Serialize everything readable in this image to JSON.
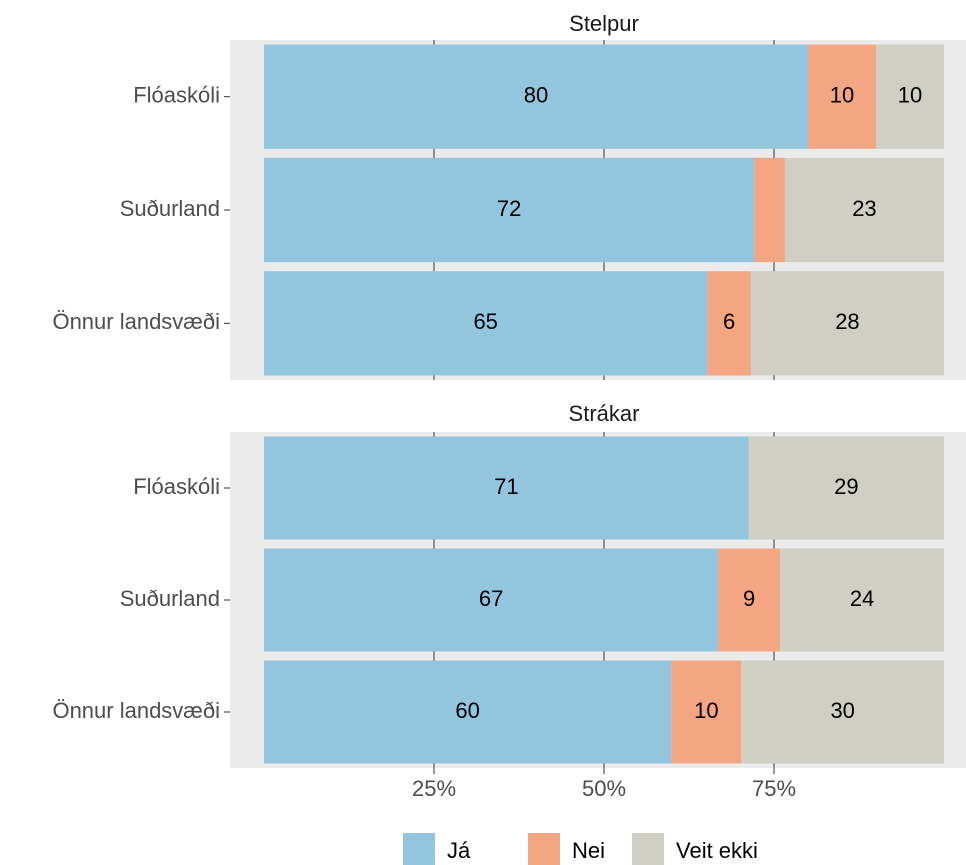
{
  "chart_data": {
    "type": "bar",
    "orientation": "horizontal",
    "stacked": true,
    "xlim": [
      -5,
      105
    ],
    "xticks": [
      {
        "value": 25,
        "label": "25%"
      },
      {
        "value": 50,
        "label": "50%"
      },
      {
        "value": 75,
        "label": "75%"
      }
    ],
    "grid": true,
    "legend": "bottom",
    "series": [
      {
        "name": "Já",
        "color": "#92c5de"
      },
      {
        "name": "Nei",
        "color": "#f4a582"
      },
      {
        "name": "Veit ekki",
        "color": "#cfcfc3"
      }
    ],
    "facets": [
      {
        "title": "Stelpur",
        "categories": [
          "Flóaskóli",
          "Suðurland",
          "Önnur landsvæði"
        ],
        "series": [
          {
            "values": [
              80,
              72.1,
              65.2
            ],
            "value_labels": [
              "80",
              "72",
              "65"
            ]
          },
          {
            "values": [
              10,
              4.5,
              6.4
            ],
            "value_labels": [
              "10",
              null,
              "6"
            ]
          },
          {
            "values": [
              10,
              23.4,
              28.4
            ],
            "value_labels": [
              "10",
              "23",
              "28"
            ]
          }
        ]
      },
      {
        "title": "Strákar",
        "categories": [
          "Flóaskóli",
          "Suðurland",
          "Önnur landsvæði"
        ],
        "series": [
          {
            "values": [
              71.3,
              66.8,
              59.9
            ],
            "value_labels": [
              "71",
              "67",
              "60"
            ]
          },
          {
            "values": [
              0,
              9.1,
              10.3
            ],
            "value_labels": [
              null,
              "9",
              "10"
            ]
          },
          {
            "values": [
              28.7,
              24.1,
              29.8
            ],
            "value_labels": [
              "29",
              "24",
              "30"
            ]
          }
        ]
      }
    ]
  }
}
